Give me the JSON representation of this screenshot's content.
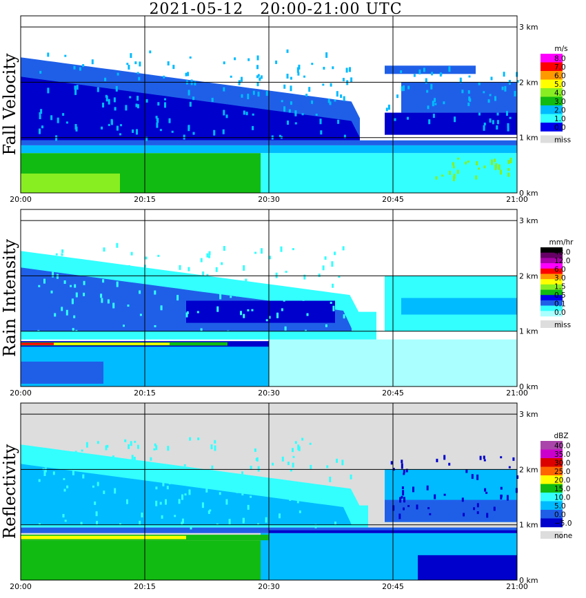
{
  "title": "2021-05-12   20:00-21:00 UTC",
  "colors": {
    "miss": "#dddddd",
    "blue_dark": "#0000cc",
    "blue": "#1f5fe8",
    "lightblue": "#00bbff",
    "cyan": "#33ffff",
    "green": "#11bb11",
    "lime": "#88ee22",
    "yellow": "#ffff00",
    "orange": "#ff9900",
    "red": "#ff0000"
  },
  "chart_data": [
    {
      "type": "heatmap",
      "ylabel": "Fall Velocity",
      "x_ticks": [
        "20:00",
        "20:15",
        "20:30",
        "20:45",
        "21:00"
      ],
      "y_ticks": [
        "0 km",
        "1 km",
        "2 km",
        "3 km"
      ],
      "ylim_km": [
        0,
        3.2
      ],
      "colorbar": {
        "unit": "m/s",
        "levels": [
          "8.0",
          "7.0",
          "6.0",
          "5.0",
          "4.0",
          "3.0",
          "2.0",
          "1.0",
          "0.0"
        ],
        "colors": [
          "#ff00ff",
          "#ff0000",
          "#ff9900",
          "#ffff00",
          "#88ee22",
          "#11bb11",
          "#00bbff",
          "#33ffff",
          "#0000ee"
        ],
        "extra": "miss"
      }
    },
    {
      "type": "heatmap",
      "ylabel": "Rain Intensity",
      "x_ticks": [
        "20:00",
        "20:15",
        "20:30",
        "20:45",
        "21:00"
      ],
      "y_ticks": [
        "0 km",
        "1 km",
        "2 km",
        "3 km"
      ],
      "ylim_km": [
        0,
        3.2
      ],
      "colorbar": {
        "unit": "mm/hr",
        "levels": [
          "48.0",
          "12.0",
          "6.0",
          "3.0",
          "1.5",
          "0.5",
          "0.1",
          "0.0"
        ],
        "colors": [
          "#000000",
          "#660066",
          "#aa00aa",
          "#ff00ff",
          "#ff0000",
          "#ff9900",
          "#ffff00",
          "#88ee22",
          "#11bb11",
          "#0000ee",
          "#1f5fe8",
          "#33ffff",
          "#aaffff"
        ],
        "extra": "miss"
      }
    },
    {
      "type": "heatmap",
      "ylabel": "Reflectivity",
      "x_ticks": [
        "20:00",
        "20:15",
        "20:30",
        "20:45",
        "21:00"
      ],
      "y_ticks": [
        "0 km",
        "1 km",
        "2 km",
        "3 km"
      ],
      "ylim_km": [
        0,
        3.2
      ],
      "colorbar": {
        "unit": "dBZ",
        "levels": [
          "40.0",
          "35.0",
          "30.0",
          "25.0",
          "20.0",
          "15.0",
          "10.0",
          "5.0",
          "0.0",
          "−5.0"
        ],
        "colors": [
          "#aa44aa",
          "#cc00cc",
          "#dd0000",
          "#ff6600",
          "#ffff00",
          "#11bb11",
          "#33ffff",
          "#00bbff",
          "#1f5fe8",
          "#0000cc"
        ],
        "extra": "none"
      }
    }
  ]
}
